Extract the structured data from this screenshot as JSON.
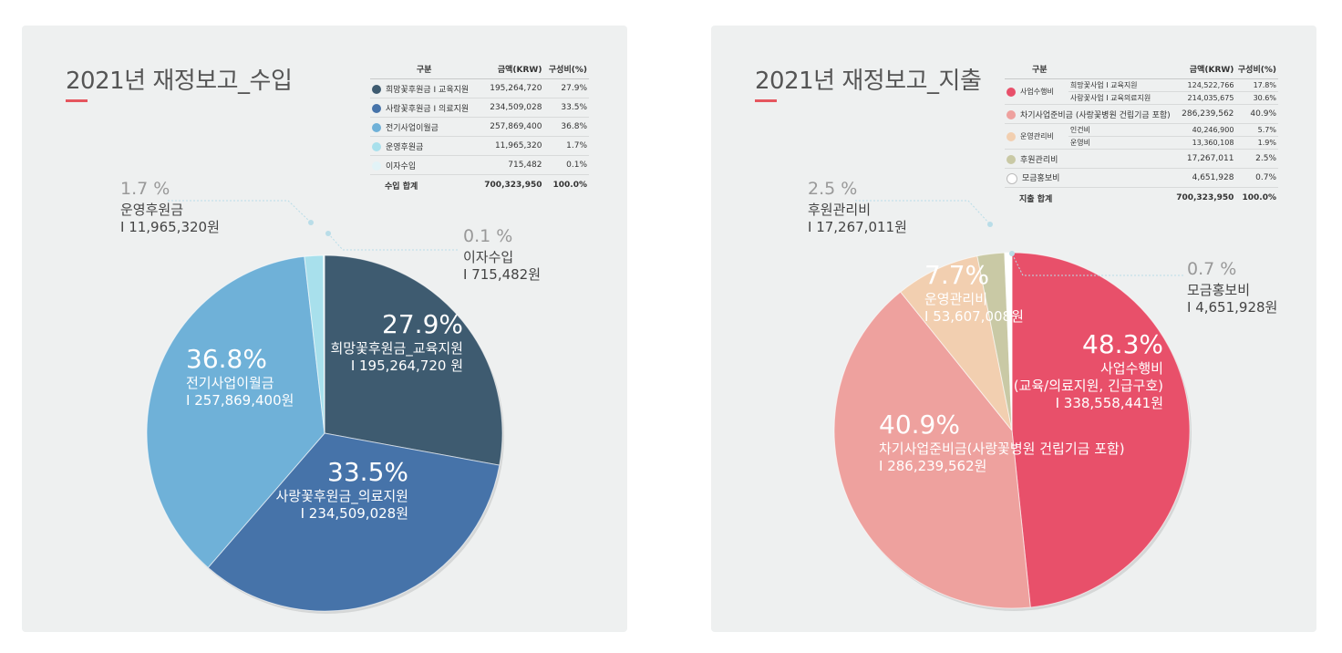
{
  "chart_data": [
    {
      "type": "pie",
      "title": "2021년 재정보고_수입",
      "slices": [
        {
          "name": "희망꽃후원금_교육지원",
          "pct_label": "27.9%",
          "amount_label": "I 195,264,720 원",
          "value": 195264720,
          "color": "#3e5b70"
        },
        {
          "name": "사랑꽃후원금_의료지원",
          "pct_label": "33.5%",
          "amount_label": "I 234,509,028원",
          "value": 234509028,
          "color": "#4673a9"
        },
        {
          "name": "전기사업이월금",
          "pct_label": "36.8%",
          "amount_label": "I 257,869,400원",
          "value": 257869400,
          "color": "#6fb1d8"
        },
        {
          "name": "운영후원금",
          "pct_label": "1.7 %",
          "amount_label": "I 11,965,320원",
          "value": 11965320,
          "color": "#a8e0ec"
        },
        {
          "name": "이자수입",
          "pct_label": "0.1 %",
          "amount_label": "I 715,482원",
          "value": 715482,
          "color": "#e2f3f7"
        }
      ],
      "table": {
        "headers": [
          "구분",
          "금액(KRW)",
          "구성비(%)"
        ],
        "rows": [
          {
            "label": "희망꽃후원금 I 교육지원",
            "amount": "195,264,720",
            "pct": "27.9%",
            "color": "#3e5b70"
          },
          {
            "label": "사랑꽃후원금 I 의료지원",
            "amount": "234,509,028",
            "pct": "33.5%",
            "color": "#4673a9"
          },
          {
            "label": "전기사업이월금",
            "amount": "257,869,400",
            "pct": "36.8%",
            "color": "#6fb1d8"
          },
          {
            "label": "운영후원금",
            "amount": "11,965,320",
            "pct": "1.7%",
            "color": "#a8e0ec"
          },
          {
            "label": "이자수입",
            "amount": "715,482",
            "pct": "0.1%",
            "color": "#e2f3f7"
          }
        ],
        "total": {
          "label": "수입 합계",
          "amount": "700,323,950",
          "pct": "100.0%"
        }
      }
    },
    {
      "type": "pie",
      "title": "2021년 재정보고_지출",
      "slices": [
        {
          "name": "사업수행비",
          "sublabel": "(교육/의료지원, 긴급구호)",
          "pct_label": "48.3%",
          "amount_label": "I 338,558,441원",
          "value": 338558441,
          "color": "#e8506a"
        },
        {
          "name": "차기사업준비금(사랑꽃병원 건립기금 포함)",
          "pct_label": "40.9%",
          "amount_label": "I 286,239,562원",
          "value": 286239562,
          "color": "#eea19e"
        },
        {
          "name": "운영관리비",
          "pct_label": "7.7%",
          "amount_label": "I 53,607,008원",
          "value": 53607008,
          "color": "#f2cfb0"
        },
        {
          "name": "후원관리비",
          "pct_label": "2.5 %",
          "amount_label": "I 17,267,011원",
          "value": 17267011,
          "color": "#c9c9a5"
        },
        {
          "name": "모금홍보비",
          "pct_label": "0.7 %",
          "amount_label": "I 4,651,928원",
          "value": 4651928,
          "color": "#ffffff"
        }
      ],
      "table": {
        "headers": [
          "구분",
          "금액(KRW)",
          "구성비(%)"
        ],
        "groups": [
          {
            "label": "사업수행비",
            "color": "#e8506a",
            "rows": [
              {
                "sub": "희망꽃사업 I 교육지원",
                "amount": "124,522,766",
                "pct": "17.8%"
              },
              {
                "sub": "사랑꽃사업 I 교육의료지원",
                "amount": "214,035,675",
                "pct": "30.6%"
              }
            ]
          },
          {
            "label": "차기사업준비금 (사랑꽃병원 건립기금 포함)",
            "color": "#eea19e",
            "rows": [
              {
                "sub": "",
                "amount": "286,239,562",
                "pct": "40.9%"
              }
            ]
          },
          {
            "label": "운영관리비",
            "color": "#f2cfb0",
            "rows": [
              {
                "sub": "인건비",
                "amount": "40,246,900",
                "pct": "5.7%"
              },
              {
                "sub": "운영비",
                "amount": "13,360,108",
                "pct": "1.9%"
              }
            ]
          },
          {
            "label": "후원관리비",
            "color": "#c9c9a5",
            "rows": [
              {
                "sub": "",
                "amount": "17,267,011",
                "pct": "2.5%"
              }
            ]
          },
          {
            "label": "모금홍보비",
            "color": "#ffffff",
            "rows": [
              {
                "sub": "",
                "amount": "4,651,928",
                "pct": "0.7%"
              }
            ]
          }
        ],
        "total": {
          "label": "지출 합계",
          "amount": "700,323,950",
          "pct": "100.0%"
        }
      }
    }
  ]
}
